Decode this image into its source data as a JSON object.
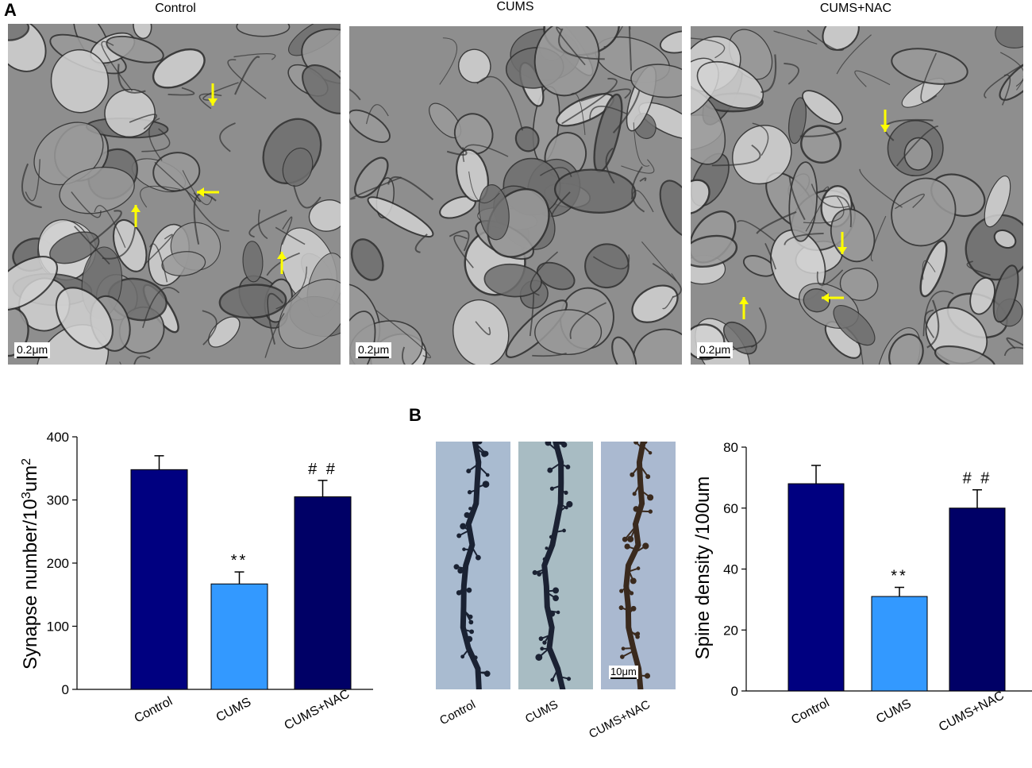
{
  "figure": {
    "panel_a_letter": "A",
    "panel_b_letter": "B",
    "em_titles": [
      "Control",
      "CUMS",
      "CUMS+NAC"
    ],
    "em_scalebar_label": "0.2μm",
    "dendrite_scalebar_label": "10μm",
    "dendrite_labels": [
      "Control",
      "CUMS",
      "CUMS+NAC"
    ],
    "arrow_color": "#ffff00"
  },
  "chart_data": [
    {
      "type": "bar",
      "categories": [
        "Control",
        "CUMS",
        "CUMS+NAC"
      ],
      "values": [
        348,
        167,
        305
      ],
      "errors": [
        22,
        19,
        26
      ],
      "annotations": [
        "",
        "**",
        "# #"
      ],
      "colors": [
        "#000080",
        "#3399ff",
        "#000066"
      ],
      "ylabel": "Synapse number/10",
      "ylabel_sup": "3",
      "ylabel_tail": "um",
      "ylabel_sup2": "2",
      "ylim": [
        0,
        400
      ],
      "yticks": [
        0,
        100,
        200,
        300,
        400
      ]
    },
    {
      "type": "bar",
      "categories": [
        "Control",
        "CUMS",
        "CUMS+NAC"
      ],
      "values": [
        68,
        31,
        60
      ],
      "errors": [
        6,
        3,
        6
      ],
      "annotations": [
        "",
        "**",
        "# #"
      ],
      "colors": [
        "#000080",
        "#3399ff",
        "#000066"
      ],
      "ylabel": "Spine density /100um",
      "ylim": [
        0,
        80
      ],
      "yticks": [
        0,
        20,
        40,
        60,
        80
      ]
    }
  ]
}
